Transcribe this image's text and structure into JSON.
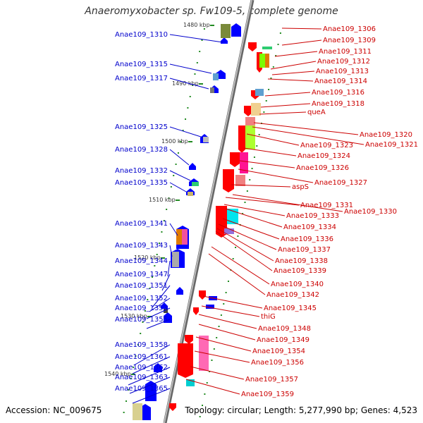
{
  "title": "Anaeromyxobacter sp. Fw109-5, complete genome",
  "footer": {
    "accession": "Accession: NC_009675",
    "topology": "Topology: circular; Length: 5,277,990 bp; Genes: 4,523"
  },
  "colors": {
    "left_label": "#0000cc",
    "right_label": "#cc0000",
    "backbone": "#888888",
    "tick": "#228b22",
    "forward_gene": "#0000ff",
    "reverse_gene": "#ff0000"
  },
  "kbp_labels": [
    "1480 kbp",
    "1490 kbp",
    "1500 kbp",
    "1510 kbp",
    "1520 kbp",
    "1530 kbp",
    "1540 kbp"
  ],
  "left_labels": [
    "Anae109_1310",
    "Anae109_1315",
    "Anae109_1317",
    "Anae109_1325",
    "Anae109_1328",
    "Anae109_1332",
    "Anae109_1335",
    "Anae109_1341",
    "Anae109_1343",
    "Anae109_1344",
    "Anae109_1347",
    "Anae109_1351",
    "Anae109_1352",
    "Anae109_1353",
    "Anae109_1355",
    "Anae109_1358",
    "Anae109_1361",
    "Anae109_1362",
    "Anae109_1363",
    "Anae109_1365"
  ],
  "right_labels": [
    "Anae109_1306",
    "Anae109_1309",
    "Anae109_1311",
    "Anae109_1312",
    "Anae109_1313",
    "Anae109_1314",
    "Anae109_1316",
    "Anae109_1318",
    "queA",
    "Anae109_1320",
    "Anae109_1321",
    "Anae109_1323",
    "Anae109_1324",
    "Anae109_1326",
    "Anae109_1327",
    "aspS",
    "Anae109_1331",
    "Anae109_1330",
    "Anae109_1333",
    "Anae109_1334",
    "Anae109_1336",
    "Anae109_1337",
    "Anae109_1338",
    "Anae109_1339",
    "Anae109_1340",
    "Anae109_1342",
    "Anae109_1345",
    "thiG",
    "Anae109_1348",
    "Anae109_1349",
    "Anae109_1354",
    "Anae109_1356",
    "Anae109_1357",
    "Anae109_1359"
  ]
}
